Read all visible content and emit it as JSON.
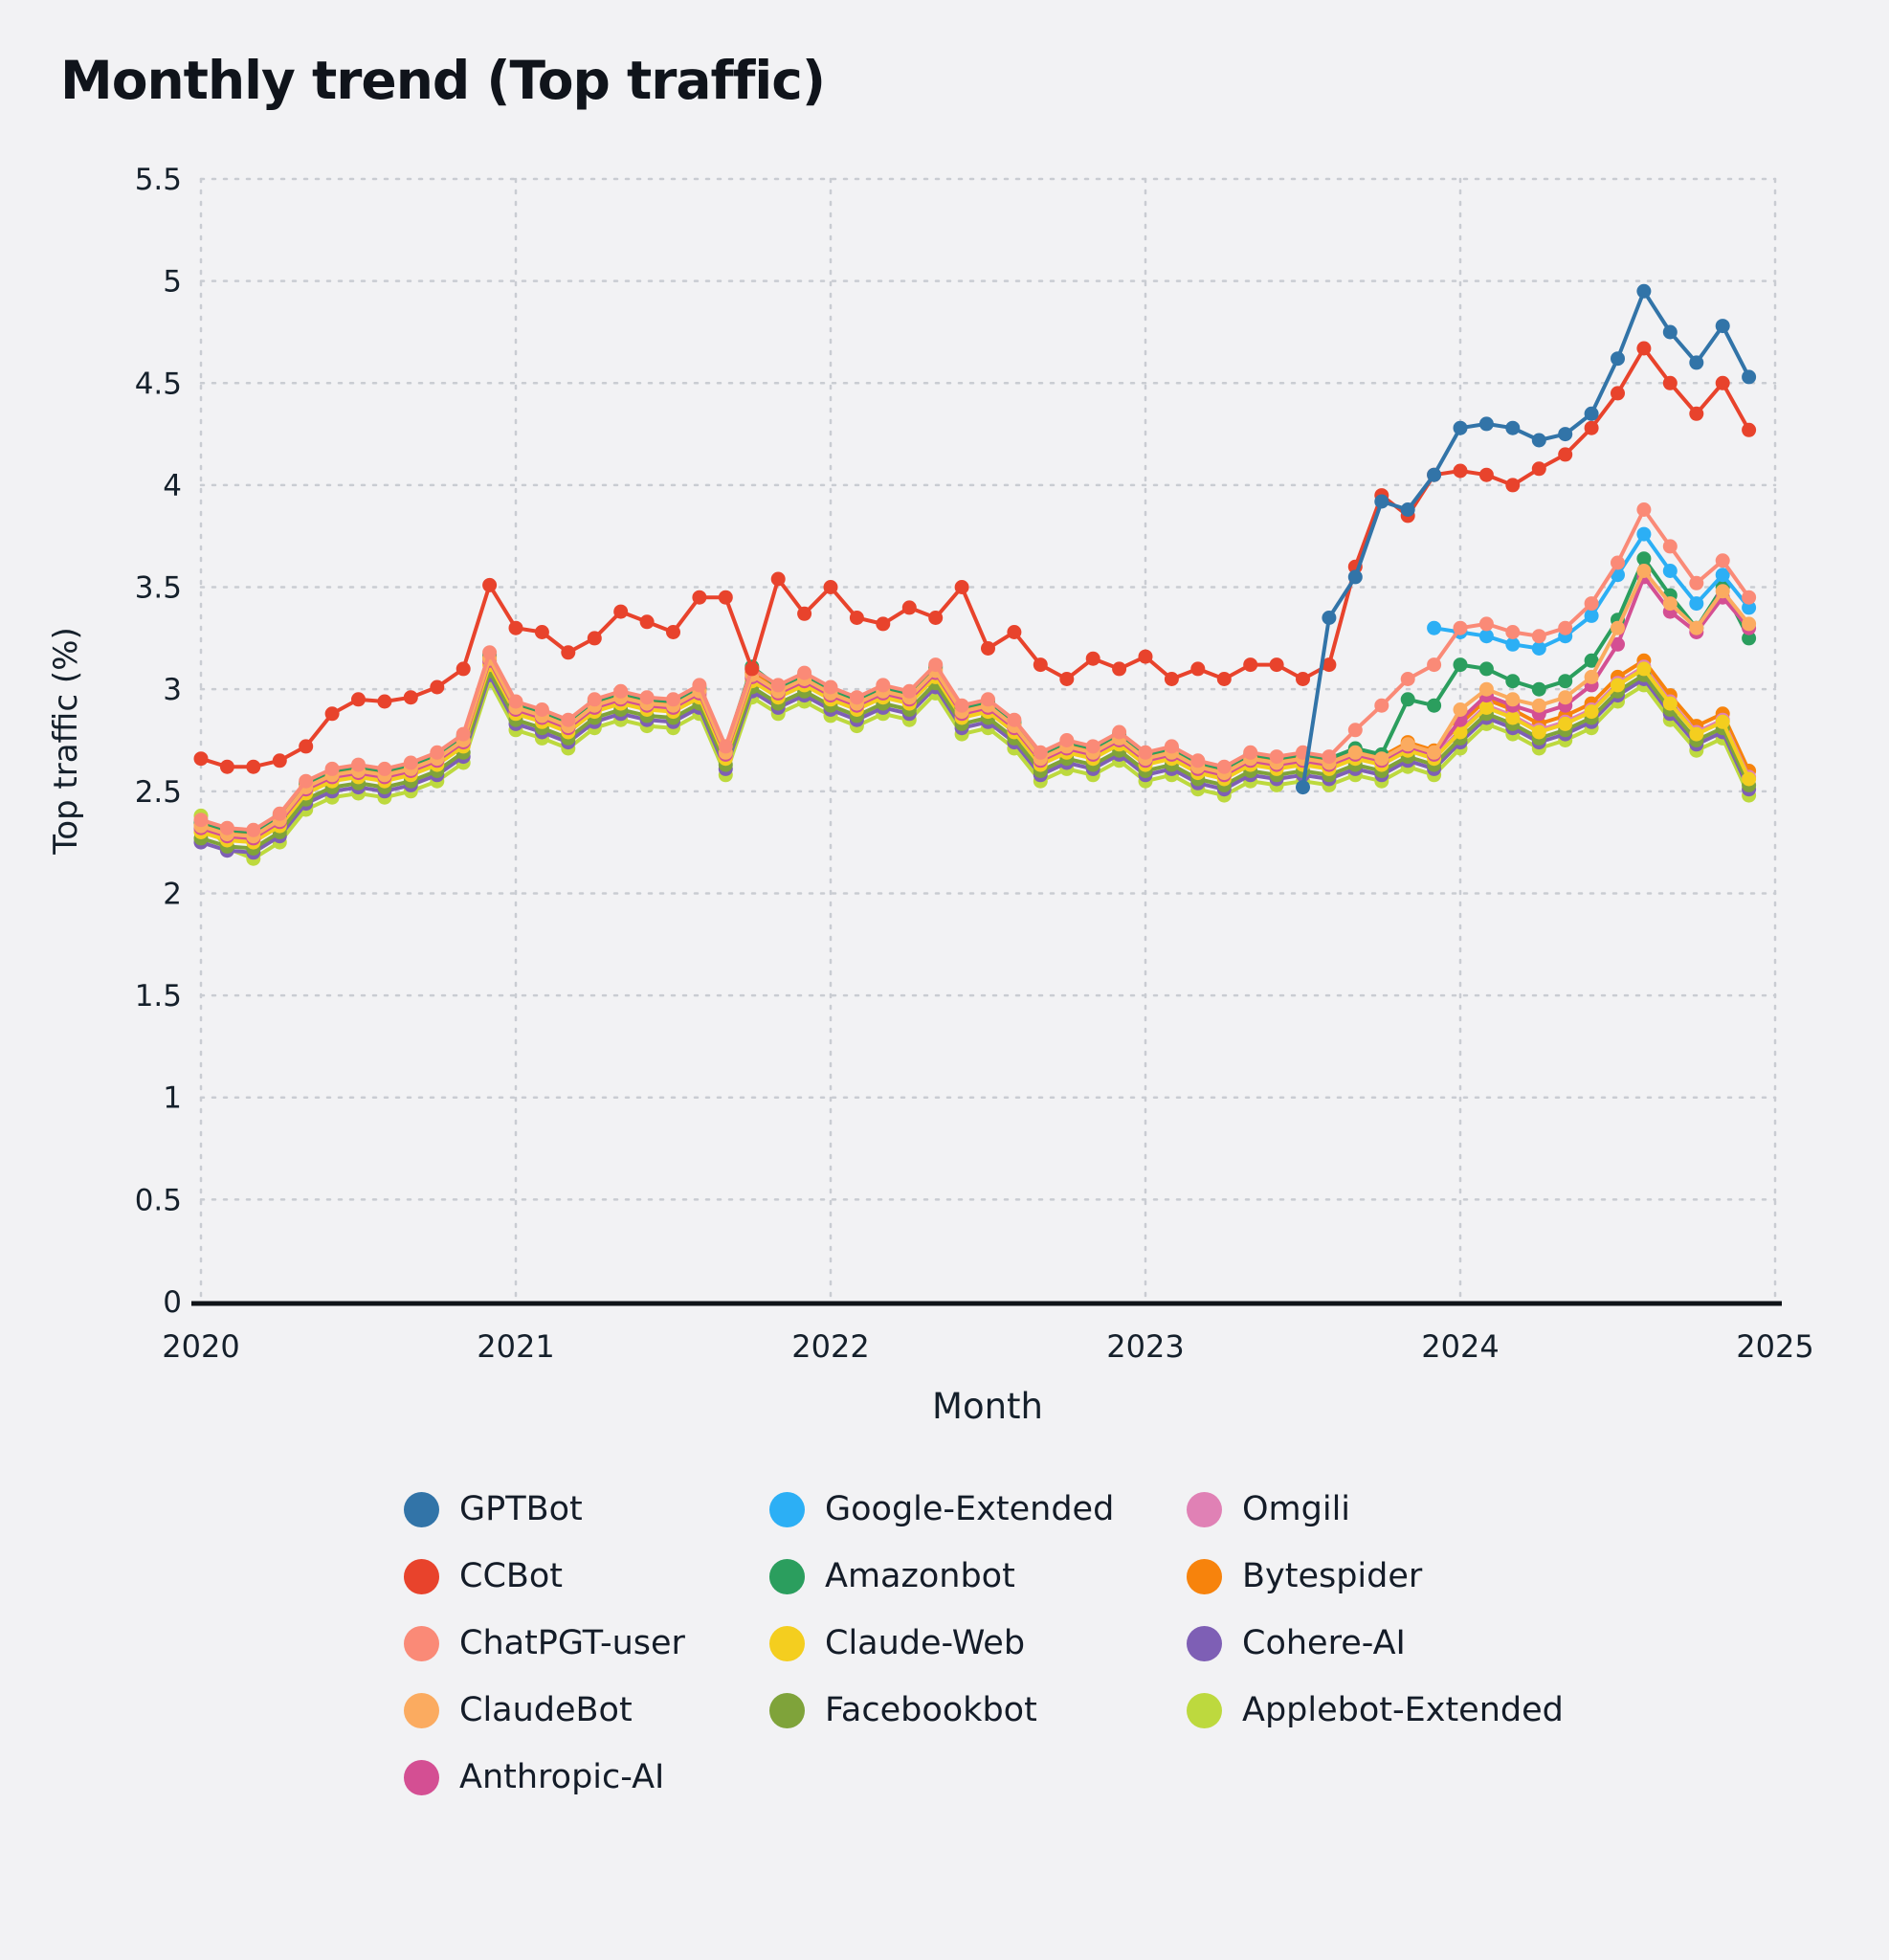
{
  "title": "Monthly trend (Top traffic)",
  "colors": {
    "background": "#f2f2f4",
    "text": "#15202b",
    "grid": "#c9ccd2",
    "axis": "#101418"
  },
  "chart_data": {
    "type": "line",
    "x_start": "2020-01",
    "months_per_year": 12,
    "x_ticks": [
      "2020",
      "2021",
      "2022",
      "2023",
      "2024",
      "2025"
    ],
    "y_ticks": [
      "0",
      "0.5",
      "1",
      "1.5",
      "2",
      "2.5",
      "3",
      "3.5",
      "4",
      "4.5",
      "5",
      "5.5"
    ],
    "xlabel": "Month",
    "ylabel": "Top traffic (%)",
    "ylim": [
      0,
      5.5
    ],
    "grid": true,
    "legend_position": "bottom",
    "marker": "circle",
    "series": [
      {
        "name": "GPTBot",
        "color": "#3274a8",
        "values": [
          null,
          null,
          null,
          null,
          null,
          null,
          null,
          null,
          null,
          null,
          null,
          null,
          null,
          null,
          null,
          null,
          null,
          null,
          null,
          null,
          null,
          null,
          null,
          null,
          null,
          null,
          null,
          null,
          null,
          null,
          null,
          null,
          null,
          null,
          null,
          null,
          null,
          null,
          null,
          null,
          null,
          null,
          2.52,
          3.35,
          3.55,
          3.92,
          3.88,
          4.05,
          4.28,
          4.3,
          4.28,
          4.22,
          4.25,
          4.35,
          4.62,
          4.95,
          4.75,
          4.6,
          4.78,
          4.53
        ]
      },
      {
        "name": "CCBot",
        "color": "#e8432c",
        "values": [
          2.66,
          2.62,
          2.62,
          2.65,
          2.72,
          2.88,
          2.95,
          2.94,
          2.96,
          3.01,
          3.1,
          3.51,
          3.3,
          3.28,
          3.18,
          3.25,
          3.38,
          3.33,
          3.28,
          3.45,
          3.45,
          3.1,
          3.54,
          3.37,
          3.5,
          3.35,
          3.32,
          3.4,
          3.35,
          3.5,
          3.2,
          3.28,
          3.12,
          3.05,
          3.15,
          3.1,
          3.16,
          3.05,
          3.1,
          3.05,
          3.12,
          3.12,
          3.05,
          3.12,
          3.6,
          3.95,
          3.85,
          4.05,
          4.07,
          4.05,
          4.0,
          4.08,
          4.15,
          4.28,
          4.45,
          4.67,
          4.5,
          4.35,
          4.5,
          4.27
        ]
      },
      {
        "name": "ChatPGT-user",
        "color": "#fa8a77",
        "values": [
          2.36,
          2.32,
          2.31,
          2.39,
          2.55,
          2.61,
          2.63,
          2.61,
          2.64,
          2.69,
          2.78,
          3.18,
          2.94,
          2.9,
          2.85,
          2.95,
          2.99,
          2.96,
          2.95,
          3.02,
          2.72,
          3.1,
          3.02,
          3.08,
          3.01,
          2.96,
          3.02,
          2.99,
          3.12,
          2.92,
          2.95,
          2.85,
          2.69,
          2.75,
          2.72,
          2.79,
          2.69,
          2.72,
          2.65,
          2.62,
          2.69,
          2.67,
          2.69,
          2.67,
          2.8,
          2.92,
          3.05,
          3.12,
          3.3,
          3.32,
          3.28,
          3.26,
          3.3,
          3.42,
          3.62,
          3.88,
          3.7,
          3.52,
          3.63,
          3.45
        ]
      },
      {
        "name": "ClaudeBot",
        "color": "#fbab60",
        "values": [
          2.33,
          2.29,
          2.28,
          2.36,
          2.52,
          2.58,
          2.6,
          2.58,
          2.61,
          2.66,
          2.75,
          3.15,
          2.91,
          2.87,
          2.82,
          2.92,
          2.96,
          2.93,
          2.92,
          2.99,
          2.69,
          3.07,
          2.99,
          3.05,
          2.98,
          2.93,
          2.99,
          2.96,
          3.09,
          2.89,
          2.92,
          2.82,
          2.66,
          2.72,
          2.69,
          2.76,
          2.66,
          2.69,
          2.62,
          2.59,
          2.66,
          2.64,
          2.66,
          2.64,
          2.69,
          2.66,
          2.73,
          2.69,
          2.9,
          3.0,
          2.95,
          2.92,
          2.96,
          3.06,
          3.3,
          3.58,
          3.42,
          3.3,
          3.48,
          3.32
        ]
      },
      {
        "name": "Anthropic-AI",
        "color": "#d44f93",
        "values": [
          2.32,
          2.28,
          2.27,
          2.35,
          2.51,
          2.57,
          2.59,
          2.57,
          2.6,
          2.65,
          2.74,
          3.14,
          2.9,
          2.86,
          2.81,
          2.91,
          2.95,
          2.92,
          2.91,
          2.98,
          2.68,
          3.06,
          2.98,
          3.04,
          2.97,
          2.92,
          2.98,
          2.95,
          3.08,
          2.88,
          2.91,
          2.81,
          2.65,
          2.71,
          2.68,
          2.75,
          2.65,
          2.68,
          2.61,
          2.58,
          2.65,
          2.63,
          2.65,
          2.63,
          2.68,
          2.65,
          2.72,
          2.68,
          2.85,
          2.97,
          2.92,
          2.88,
          2.92,
          3.02,
          3.22,
          3.55,
          3.38,
          3.28,
          3.45,
          3.3
        ]
      },
      {
        "name": "Google-Extended",
        "color": "#2caff5",
        "values": [
          null,
          null,
          null,
          null,
          null,
          null,
          null,
          null,
          null,
          null,
          null,
          null,
          null,
          null,
          null,
          null,
          null,
          null,
          null,
          null,
          null,
          null,
          null,
          null,
          null,
          null,
          null,
          null,
          null,
          null,
          null,
          null,
          null,
          null,
          null,
          null,
          null,
          null,
          null,
          null,
          null,
          null,
          null,
          null,
          null,
          null,
          null,
          3.3,
          3.28,
          3.26,
          3.22,
          3.2,
          3.26,
          3.36,
          3.56,
          3.76,
          3.58,
          3.42,
          3.56,
          3.4
        ]
      },
      {
        "name": "Amazonbot",
        "color": "#2b9e5e",
        "values": [
          2.35,
          2.31,
          2.3,
          2.38,
          2.54,
          2.6,
          2.62,
          2.6,
          2.63,
          2.68,
          2.77,
          3.17,
          2.93,
          2.89,
          2.84,
          2.94,
          2.98,
          2.95,
          2.94,
          3.01,
          2.71,
          3.11,
          3.01,
          3.07,
          3.0,
          2.95,
          3.01,
          2.98,
          3.11,
          2.91,
          2.94,
          2.84,
          2.68,
          2.74,
          2.71,
          2.78,
          2.68,
          2.71,
          2.64,
          2.61,
          2.68,
          2.66,
          2.68,
          2.66,
          2.71,
          2.68,
          2.95,
          2.92,
          3.12,
          3.1,
          3.04,
          3.0,
          3.04,
          3.14,
          3.34,
          3.64,
          3.46,
          3.3,
          3.5,
          3.25
        ]
      },
      {
        "name": "Claude-Web",
        "color": "#f4ce1f",
        "values": [
          2.3,
          2.26,
          2.25,
          2.33,
          2.49,
          2.55,
          2.57,
          2.55,
          2.58,
          2.63,
          2.72,
          3.12,
          2.88,
          2.84,
          2.79,
          2.89,
          2.93,
          2.9,
          2.89,
          2.96,
          2.66,
          3.04,
          2.96,
          3.02,
          2.95,
          2.9,
          2.96,
          2.93,
          3.06,
          2.86,
          2.89,
          2.79,
          2.63,
          2.69,
          2.66,
          2.73,
          2.63,
          2.66,
          2.59,
          2.56,
          2.63,
          2.61,
          2.63,
          2.61,
          2.66,
          2.63,
          2.7,
          2.66,
          2.79,
          2.91,
          2.86,
          2.79,
          2.83,
          2.89,
          3.02,
          3.1,
          2.93,
          2.78,
          2.84,
          2.56
        ]
      },
      {
        "name": "Facebookbot",
        "color": "#7fa33a",
        "values": [
          2.27,
          2.23,
          2.22,
          2.3,
          2.46,
          2.52,
          2.54,
          2.52,
          2.55,
          2.6,
          2.69,
          3.09,
          2.85,
          2.81,
          2.76,
          2.86,
          2.9,
          2.87,
          2.86,
          2.93,
          2.63,
          3.01,
          2.93,
          2.99,
          2.92,
          2.87,
          2.93,
          2.9,
          3.03,
          2.83,
          2.86,
          2.76,
          2.6,
          2.66,
          2.63,
          2.7,
          2.6,
          2.63,
          2.56,
          2.53,
          2.6,
          2.58,
          2.6,
          2.58,
          2.63,
          2.6,
          2.67,
          2.63,
          2.76,
          2.88,
          2.83,
          2.76,
          2.8,
          2.86,
          2.99,
          3.07,
          2.9,
          2.75,
          2.81,
          2.53
        ]
      },
      {
        "name": "Omgili",
        "color": "#e081b5",
        "values": [
          2.31,
          2.27,
          2.26,
          2.34,
          2.5,
          2.56,
          2.58,
          2.56,
          2.59,
          2.64,
          2.73,
          3.13,
          2.89,
          2.85,
          2.8,
          2.9,
          2.94,
          2.91,
          2.9,
          2.97,
          2.67,
          3.05,
          2.97,
          3.03,
          2.96,
          2.91,
          2.97,
          2.94,
          3.07,
          2.87,
          2.9,
          2.8,
          2.64,
          2.7,
          2.67,
          2.74,
          2.64,
          2.67,
          2.6,
          2.57,
          2.64,
          2.62,
          2.64,
          2.62,
          2.67,
          2.64,
          2.71,
          2.67,
          2.8,
          2.92,
          2.87,
          2.8,
          2.84,
          2.9,
          3.03,
          3.11,
          2.94,
          2.79,
          2.85,
          2.57
        ]
      },
      {
        "name": "Bytespider",
        "color": "#f7830c",
        "values": [
          2.34,
          2.3,
          2.29,
          2.37,
          2.53,
          2.59,
          2.61,
          2.59,
          2.62,
          2.67,
          2.76,
          3.16,
          2.92,
          2.88,
          2.83,
          2.93,
          2.97,
          2.94,
          2.93,
          3.0,
          2.7,
          3.08,
          3.0,
          3.06,
          2.99,
          2.94,
          3.0,
          2.97,
          3.1,
          2.9,
          2.93,
          2.83,
          2.67,
          2.73,
          2.7,
          2.77,
          2.67,
          2.7,
          2.63,
          2.6,
          2.67,
          2.65,
          2.67,
          2.65,
          2.7,
          2.67,
          2.74,
          2.7,
          2.83,
          2.95,
          2.9,
          2.83,
          2.87,
          2.93,
          3.06,
          3.14,
          2.97,
          2.82,
          2.88,
          2.6
        ]
      },
      {
        "name": "Cohere-AI",
        "color": "#7e5fb5",
        "values": [
          2.25,
          2.21,
          2.2,
          2.28,
          2.44,
          2.5,
          2.52,
          2.5,
          2.53,
          2.58,
          2.67,
          3.07,
          2.83,
          2.79,
          2.74,
          2.84,
          2.88,
          2.85,
          2.84,
          2.91,
          2.61,
          2.99,
          2.91,
          2.97,
          2.9,
          2.85,
          2.91,
          2.88,
          3.01,
          2.81,
          2.84,
          2.74,
          2.58,
          2.64,
          2.61,
          2.68,
          2.58,
          2.61,
          2.54,
          2.51,
          2.58,
          2.56,
          2.58,
          2.56,
          2.61,
          2.58,
          2.65,
          2.61,
          2.74,
          2.86,
          2.81,
          2.74,
          2.78,
          2.84,
          2.97,
          3.05,
          2.88,
          2.73,
          2.79,
          2.51
        ]
      },
      {
        "name": "Applebot-Extended",
        "color": "#bdd93e",
        "values": [
          2.38,
          2.22,
          2.17,
          2.25,
          2.41,
          2.47,
          2.49,
          2.47,
          2.5,
          2.55,
          2.64,
          3.04,
          2.8,
          2.76,
          2.71,
          2.81,
          2.85,
          2.82,
          2.81,
          2.88,
          2.58,
          2.96,
          2.88,
          2.94,
          2.87,
          2.82,
          2.88,
          2.85,
          2.98,
          2.78,
          2.81,
          2.71,
          2.55,
          2.61,
          2.58,
          2.65,
          2.55,
          2.58,
          2.51,
          2.48,
          2.55,
          2.53,
          2.55,
          2.53,
          2.58,
          2.55,
          2.62,
          2.58,
          2.71,
          2.83,
          2.78,
          2.71,
          2.75,
          2.81,
          2.94,
          3.02,
          2.85,
          2.7,
          2.76,
          2.48
        ]
      }
    ]
  }
}
